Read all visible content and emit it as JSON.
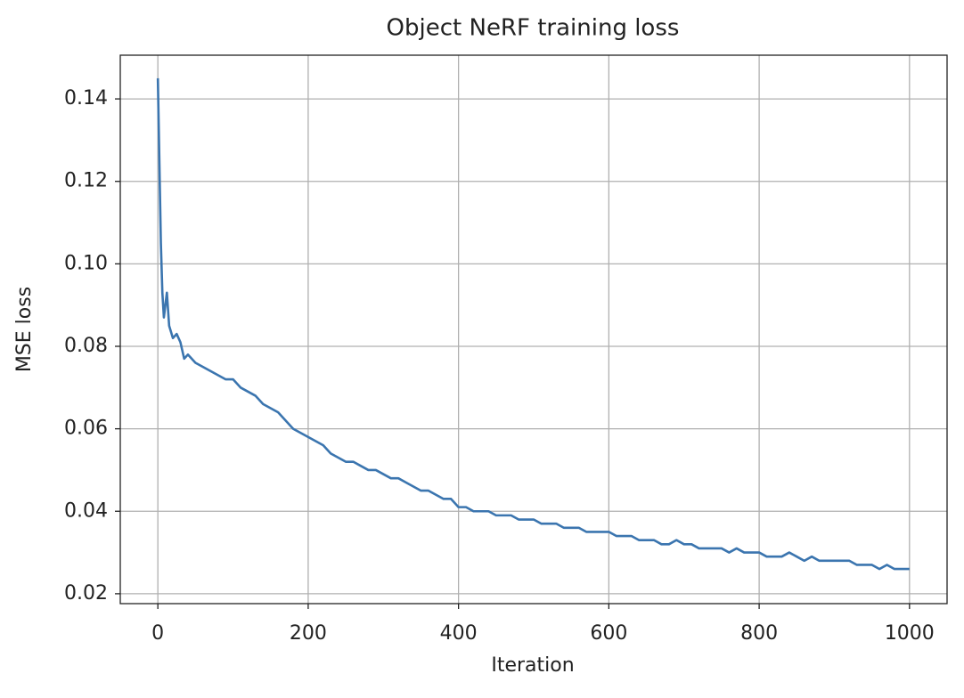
{
  "chart_data": {
    "type": "line",
    "title": "Object NeRF training loss",
    "x_label": "Iteration",
    "y_label": "MSE loss",
    "x": [
      0,
      2,
      4,
      6,
      8,
      10,
      12,
      15,
      20,
      25,
      30,
      35,
      40,
      50,
      60,
      70,
      80,
      90,
      100,
      110,
      120,
      130,
      140,
      150,
      160,
      170,
      180,
      190,
      200,
      210,
      220,
      230,
      240,
      250,
      260,
      270,
      280,
      290,
      300,
      310,
      320,
      330,
      340,
      350,
      360,
      370,
      380,
      390,
      400,
      410,
      420,
      430,
      440,
      450,
      460,
      470,
      480,
      490,
      500,
      510,
      520,
      530,
      540,
      550,
      560,
      570,
      580,
      590,
      600,
      610,
      620,
      630,
      640,
      650,
      660,
      670,
      680,
      690,
      700,
      710,
      720,
      730,
      740,
      750,
      760,
      770,
      780,
      790,
      800,
      810,
      820,
      830,
      840,
      850,
      860,
      870,
      880,
      890,
      900,
      910,
      920,
      930,
      940,
      950,
      960,
      970,
      980,
      990,
      1000
    ],
    "series": [
      {
        "name": "MSE loss",
        "color": "#3b75af",
        "values": [
          0.145,
          0.125,
          0.105,
          0.093,
          0.087,
          0.09,
          0.093,
          0.085,
          0.082,
          0.083,
          0.081,
          0.077,
          0.078,
          0.076,
          0.075,
          0.074,
          0.073,
          0.072,
          0.072,
          0.07,
          0.069,
          0.068,
          0.066,
          0.065,
          0.064,
          0.062,
          0.06,
          0.059,
          0.058,
          0.057,
          0.056,
          0.054,
          0.053,
          0.052,
          0.052,
          0.051,
          0.05,
          0.05,
          0.049,
          0.048,
          0.048,
          0.047,
          0.046,
          0.045,
          0.045,
          0.044,
          0.043,
          0.043,
          0.041,
          0.041,
          0.04,
          0.04,
          0.04,
          0.039,
          0.039,
          0.039,
          0.038,
          0.038,
          0.038,
          0.037,
          0.037,
          0.037,
          0.036,
          0.036,
          0.036,
          0.035,
          0.035,
          0.035,
          0.035,
          0.034,
          0.034,
          0.034,
          0.033,
          0.033,
          0.033,
          0.032,
          0.032,
          0.033,
          0.032,
          0.032,
          0.031,
          0.031,
          0.031,
          0.031,
          0.03,
          0.031,
          0.03,
          0.03,
          0.03,
          0.029,
          0.029,
          0.029,
          0.03,
          0.029,
          0.028,
          0.029,
          0.028,
          0.028,
          0.028,
          0.028,
          0.028,
          0.027,
          0.027,
          0.027,
          0.026,
          0.027,
          0.026,
          0.026,
          0.026
        ]
      }
    ],
    "xlim": [
      -50,
      1050
    ],
    "xticks": [
      0,
      200,
      400,
      600,
      800,
      1000
    ],
    "ylim": [
      0.0176,
      0.1506
    ],
    "yticks": [
      0.02,
      0.04,
      0.06,
      0.08,
      {
        "value": 0.1,
        "label": "0.10"
      },
      0.12,
      0.14
    ],
    "grid": true
  }
}
